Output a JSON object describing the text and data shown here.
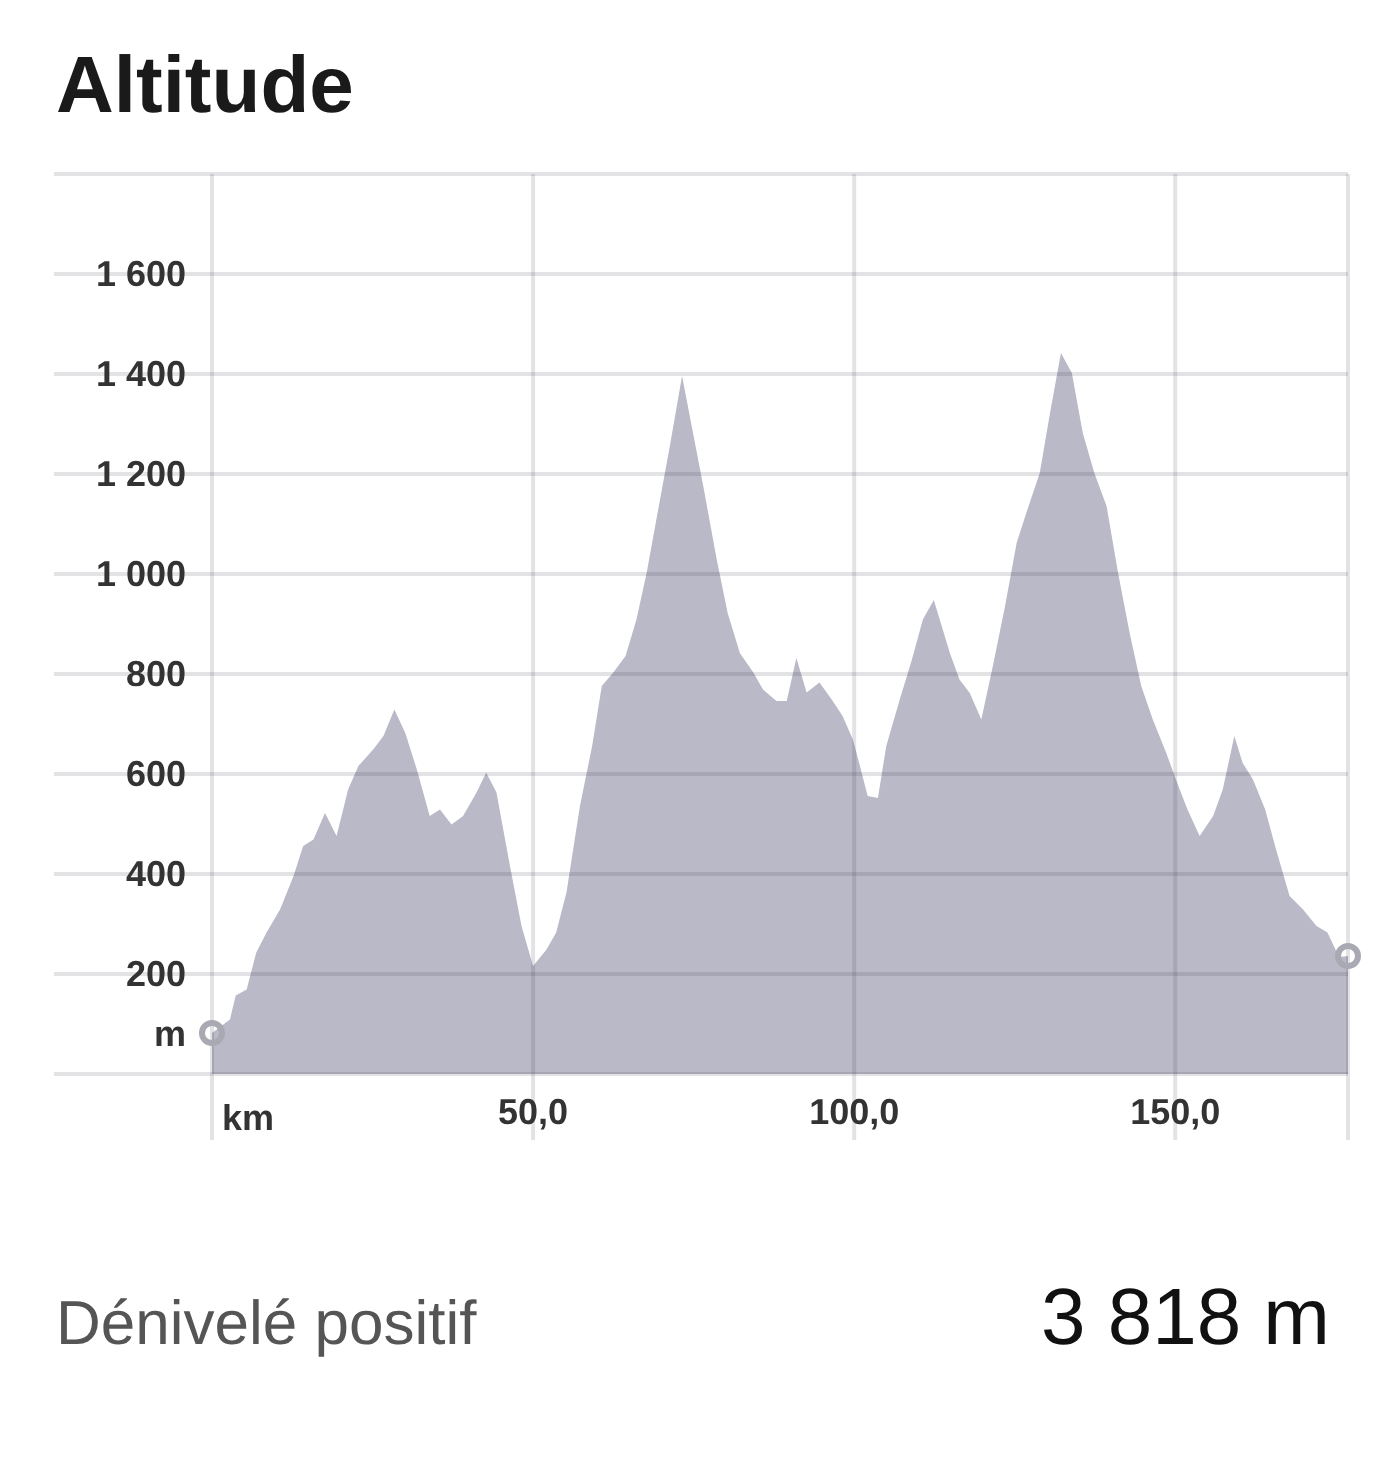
{
  "chart_data": {
    "type": "area",
    "title": "Altitude",
    "xlabel": "km",
    "ylabel": "m",
    "xlim": [
      -24.6,
      176.9
    ],
    "ylim": [
      0,
      1800
    ],
    "xticks": [
      {
        "value": 0,
        "label": null
      },
      {
        "value": 50,
        "label": "50,0"
      },
      {
        "value": 100,
        "label": "100,0"
      },
      {
        "value": 150,
        "label": "150,0"
      }
    ],
    "yticks": [
      {
        "value": 0,
        "label": null
      },
      200,
      400,
      600,
      800,
      {
        "value": 1000,
        "label": "1 000"
      },
      {
        "value": 1200,
        "label": "1 200"
      },
      {
        "value": 1400,
        "label": "1 400"
      },
      {
        "value": 1600,
        "label": "1 600"
      },
      {
        "value": 1800,
        "label": null
      }
    ],
    "grid": true,
    "series": [
      {
        "color": "#b9b9c7",
        "x": [
          0,
          2.8,
          3.7,
          5.4,
          6.9,
          8.5,
          10.6,
          12.7,
          14.2,
          15.8,
          17.6,
          19.4,
          21.2,
          22.8,
          25.1,
          26.7,
          28.4,
          30.1,
          31.9,
          33.9,
          35.5,
          37.3,
          39.1,
          41.2,
          42.7,
          44.3,
          46.4,
          48.2,
          50.0,
          52.1,
          53.6,
          55.2,
          57.3,
          59.2,
          60.7,
          62.5,
          64.4,
          66.1,
          67.7,
          69.2,
          71.3,
          73.2,
          74.7,
          76.5,
          78.6,
          80.3,
          82.2,
          84.3,
          85.8,
          87.9,
          89.5,
          91.0,
          92.6,
          94.6,
          96.5,
          98.2,
          99.8,
          100.9,
          102.1,
          103.7,
          105.0,
          107.1,
          109.0,
          110.7,
          112.4,
          114.9,
          116.4,
          118.0,
          119.8,
          121.6,
          123.5,
          125.3,
          126.8,
          128.9,
          130.5,
          132.2,
          133.9,
          135.6,
          137.4,
          139.3,
          141.1,
          142.9,
          144.7,
          146.5,
          148.6,
          150.1,
          151.9,
          153.8,
          155.9,
          157.4,
          159.2,
          160.5,
          162.1,
          164.0,
          165.7,
          167.8,
          169.9,
          172.0,
          173.7,
          175.5,
          176.9
        ],
        "values": [
          82,
          109,
          157,
          169,
          243,
          283,
          329,
          396,
          456,
          469,
          522,
          476,
          569,
          616,
          649,
          676,
          729,
          682,
          609,
          516,
          529,
          499,
          516,
          563,
          603,
          563,
          416,
          296,
          216,
          249,
          283,
          363,
          536,
          656,
          776,
          803,
          836,
          909,
          1003,
          1109,
          1256,
          1396,
          1296,
          1176,
          1029,
          922,
          842,
          803,
          769,
          746,
          746,
          832,
          763,
          783,
          749,
          716,
          669,
          616,
          556,
          552,
          656,
          749,
          829,
          909,
          948,
          842,
          789,
          762,
          709,
          816,
          936,
          1062,
          1122,
          1202,
          1322,
          1442,
          1402,
          1282,
          1202,
          1136,
          1002,
          882,
          776,
          709,
          642,
          589,
          529,
          476,
          516,
          569,
          676,
          622,
          589,
          529,
          449,
          356,
          329,
          296,
          283,
          234,
          236
        ]
      },
      {
        "type": "scatter",
        "color": "#a9a9b3",
        "marker": "circle",
        "x": [
          0,
          176.9
        ],
        "values": [
          82,
          236
        ]
      }
    ],
    "annotations": [
      "Dénivelé positif",
      "3 818 m"
    ]
  }
}
